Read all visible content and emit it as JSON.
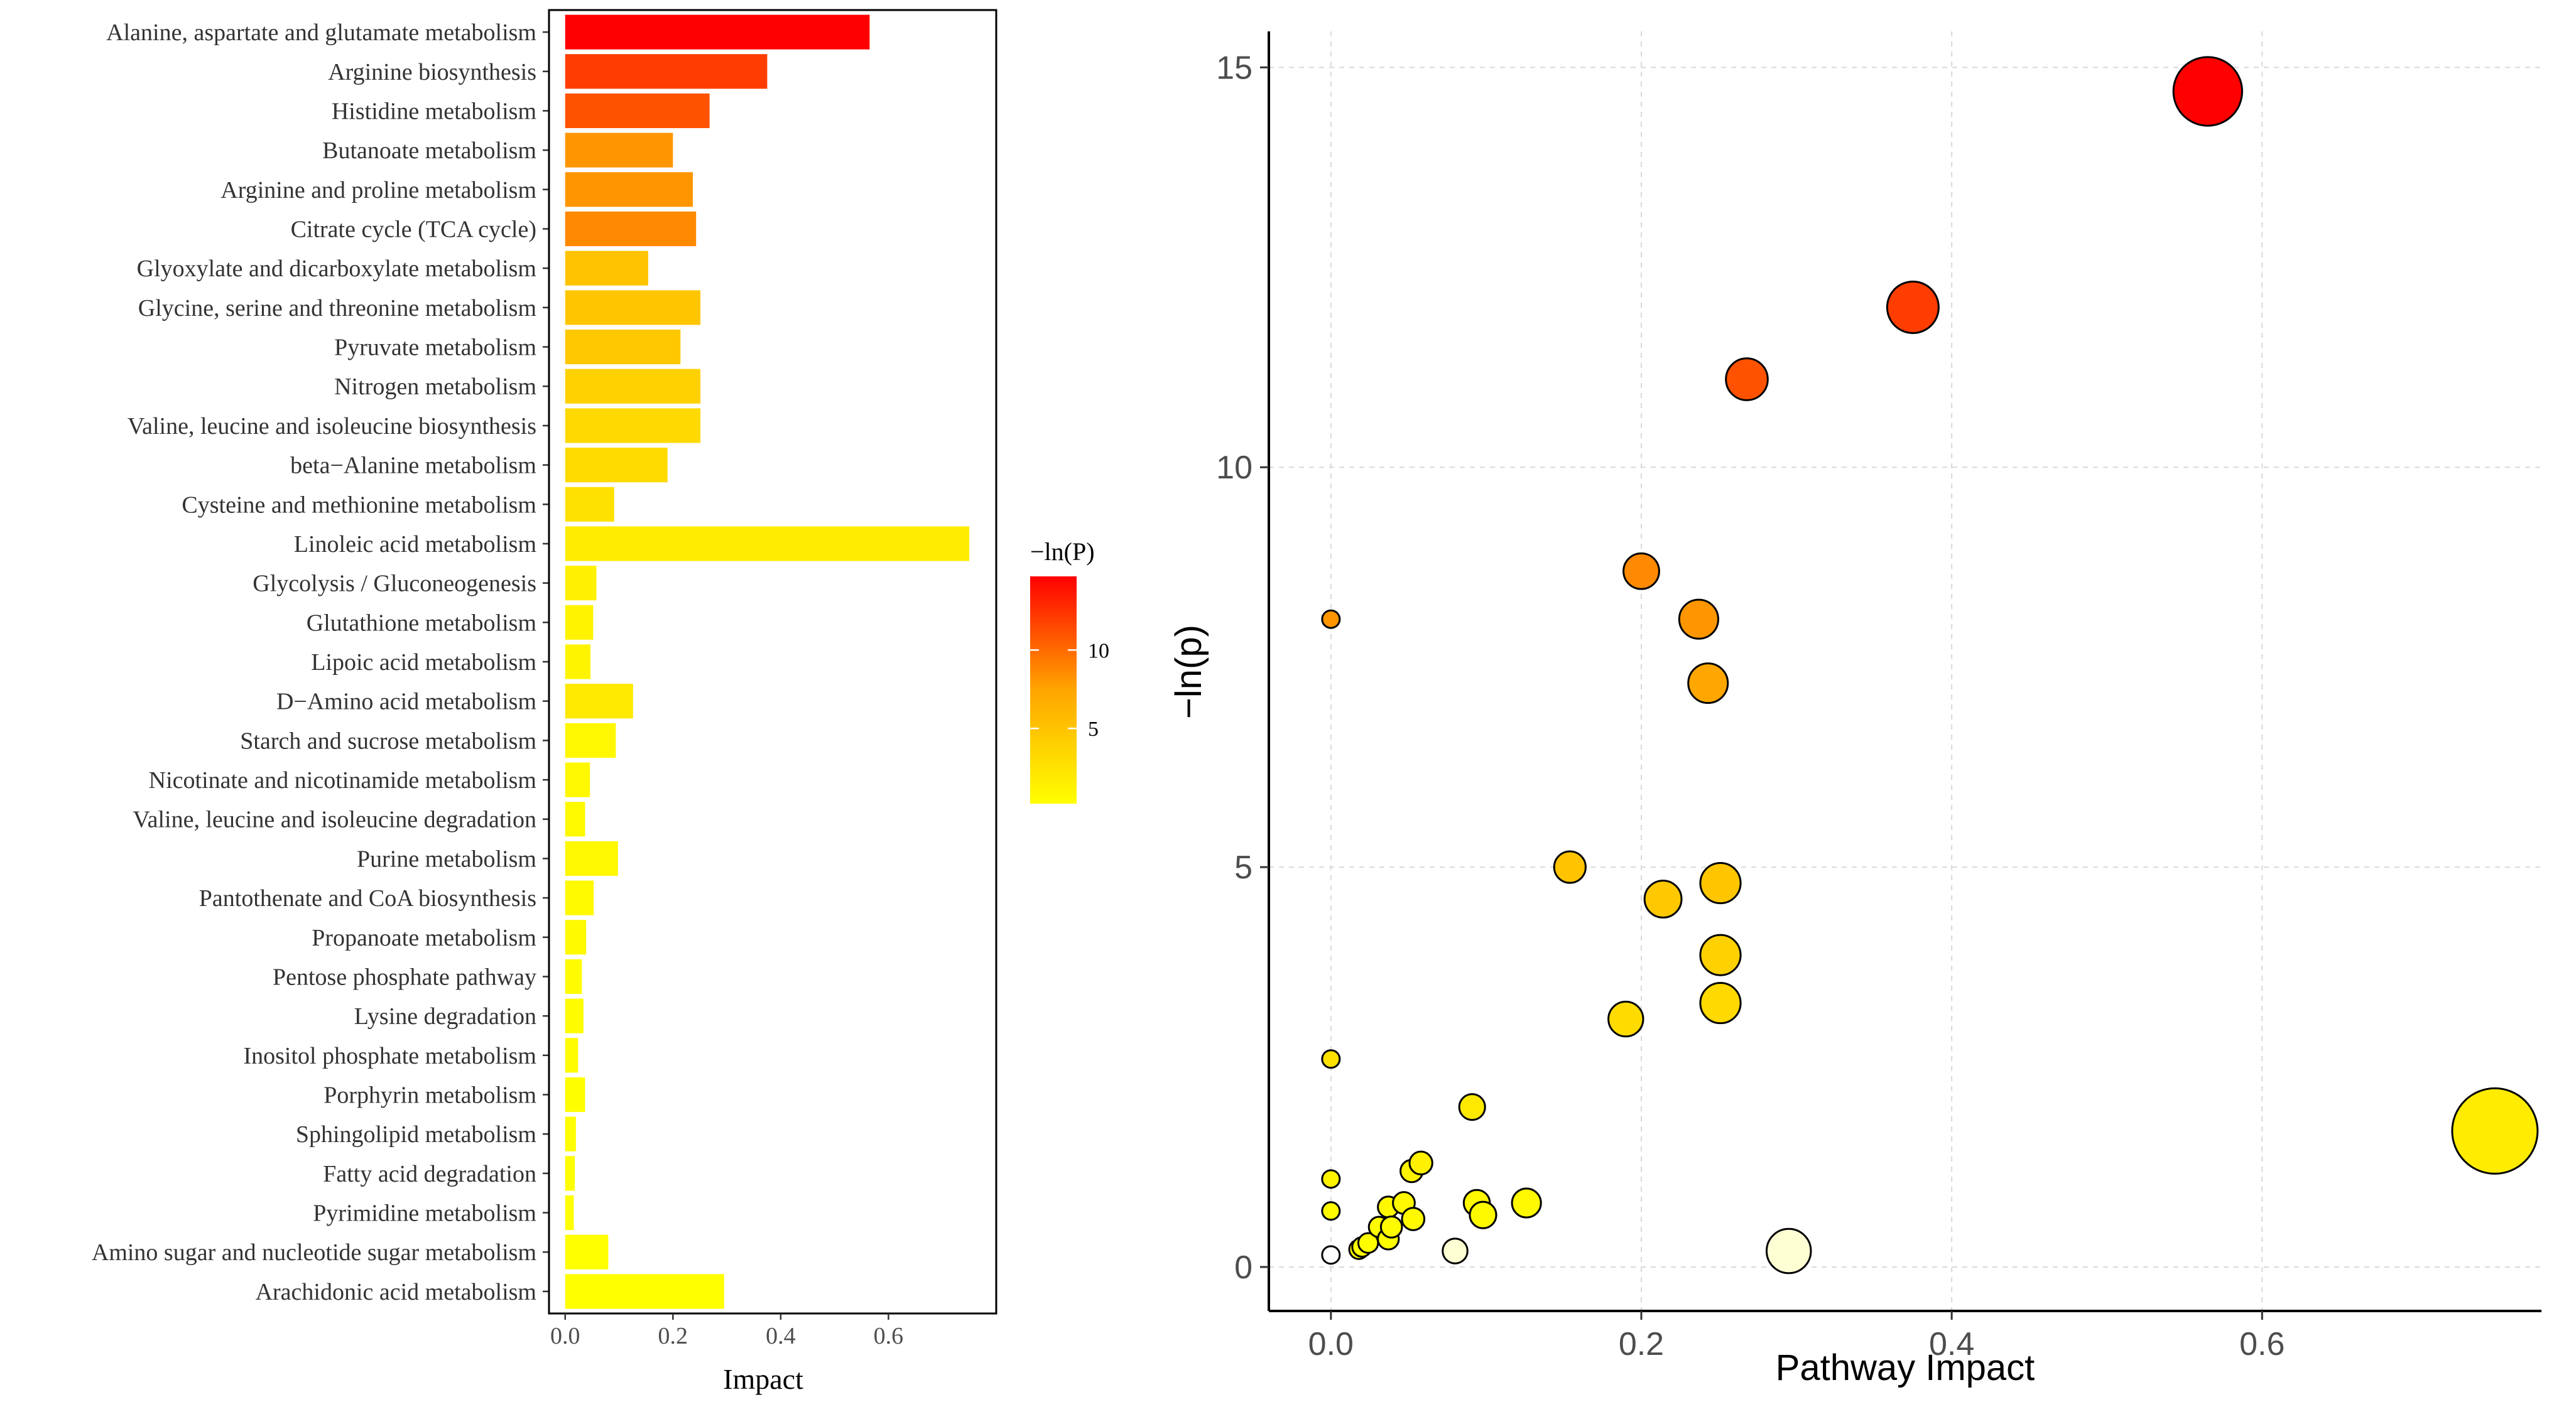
{
  "chart_data": [
    {
      "type": "bar",
      "orientation": "horizontal",
      "xlabel": "Impact",
      "xlim": [
        -0.03,
        0.8
      ],
      "x_ticks": [
        {
          "v": 0.0,
          "label": "0.0"
        },
        {
          "v": 0.2,
          "label": "0.2"
        },
        {
          "v": 0.4,
          "label": "0.4"
        },
        {
          "v": 0.6,
          "label": "0.6"
        }
      ],
      "categories": [
        "Alanine, aspartate and glutamate metabolism",
        "Arginine biosynthesis",
        "Histidine metabolism",
        "Butanoate metabolism",
        "Arginine and proline metabolism",
        "Citrate cycle (TCA cycle)",
        "Glyoxylate and dicarboxylate metabolism",
        "Glycine, serine and threonine metabolism",
        "Pyruvate metabolism",
        "Nitrogen metabolism",
        "Valine, leucine and isoleucine biosynthesis",
        "beta−Alanine metabolism",
        "Cysteine and methionine metabolism",
        "Linoleic acid metabolism",
        "Glycolysis / Gluconeogenesis",
        "Glutathione metabolism",
        "Lipoic acid metabolism",
        "D−Amino acid metabolism",
        "Starch and sucrose metabolism",
        "Nicotinate and nicotinamide metabolism",
        "Valine, leucine and isoleucine degradation",
        "Purine metabolism",
        "Pantothenate and CoA biosynthesis",
        "Propanoate metabolism",
        "Pentose phosphate pathway",
        "Lysine degradation",
        "Inositol phosphate metabolism",
        "Porphyrin metabolism",
        "Sphingolipid metabolism",
        "Fatty acid degradation",
        "Pyrimidine metabolism",
        "Amino sugar and nucleotide sugar metabolism",
        "Arachidonic acid metabolism"
      ],
      "values": [
        0.565,
        0.375,
        0.268,
        0.2,
        0.237,
        0.243,
        0.154,
        0.251,
        0.214,
        0.251,
        0.251,
        0.19,
        0.091,
        0.75,
        0.058,
        0.052,
        0.047,
        0.126,
        0.094,
        0.046,
        0.037,
        0.098,
        0.053,
        0.039,
        0.031,
        0.034,
        0.024,
        0.037,
        0.02,
        0.018,
        0.016,
        0.08,
        0.295
      ],
      "neg_ln_p": [
        14.7,
        12.0,
        11.1,
        8.1,
        8.1,
        8.7,
        5.0,
        4.8,
        4.6,
        3.9,
        3.3,
        3.1,
        2.6,
        1.7,
        1.3,
        1.2,
        1.1,
        2.0,
        0.8,
        0.8,
        0.7,
        0.8,
        0.6,
        0.6,
        0.5,
        0.4,
        0.4,
        0.3,
        0.3,
        0.3,
        0.2,
        0.2,
        0.2
      ],
      "legend": {
        "title": "−ln(P)",
        "position": "right",
        "range": [
          0.2,
          14.7
        ],
        "ticks": [
          {
            "v": 5,
            "label": "5"
          },
          {
            "v": 10,
            "label": "10"
          }
        ],
        "color_low": "#FFFF00",
        "color_high": "#FF0000"
      }
    },
    {
      "type": "scatter",
      "variant": "bubble",
      "xlabel": "Pathway Impact",
      "ylabel": "−ln(p)",
      "xlim": [
        -0.04,
        0.78
      ],
      "ylim": [
        -0.55,
        15.45
      ],
      "x_ticks": [
        {
          "v": 0.0,
          "label": "0.0"
        },
        {
          "v": 0.2,
          "label": "0.2"
        },
        {
          "v": 0.4,
          "label": "0.4"
        },
        {
          "v": 0.6,
          "label": "0.6"
        }
      ],
      "y_ticks": [
        {
          "v": 0,
          "label": "0"
        },
        {
          "v": 5,
          "label": "5"
        },
        {
          "v": 10,
          "label": "10"
        },
        {
          "v": 15,
          "label": "15"
        }
      ],
      "grid": true,
      "points": [
        {
          "x": 0.565,
          "y": 14.7
        },
        {
          "x": 0.375,
          "y": 12.0
        },
        {
          "x": 0.268,
          "y": 11.1
        },
        {
          "x": 0.2,
          "y": 8.7
        },
        {
          "x": 0.237,
          "y": 8.1
        },
        {
          "x": 0.243,
          "y": 7.3
        },
        {
          "x": 0.0,
          "y": 8.1
        },
        {
          "x": 0.154,
          "y": 5.0
        },
        {
          "x": 0.251,
          "y": 4.8
        },
        {
          "x": 0.214,
          "y": 4.6
        },
        {
          "x": 0.251,
          "y": 3.9
        },
        {
          "x": 0.251,
          "y": 3.3
        },
        {
          "x": 0.19,
          "y": 3.1
        },
        {
          "x": 0.0,
          "y": 2.6
        },
        {
          "x": 0.75,
          "y": 1.7
        },
        {
          "x": 0.091,
          "y": 2.0
        },
        {
          "x": 0.058,
          "y": 1.3
        },
        {
          "x": 0.052,
          "y": 1.2
        },
        {
          "x": 0.0,
          "y": 1.1
        },
        {
          "x": 0.047,
          "y": 0.8
        },
        {
          "x": 0.037,
          "y": 0.75
        },
        {
          "x": 0.094,
          "y": 0.8
        },
        {
          "x": 0.126,
          "y": 0.8
        },
        {
          "x": 0.0,
          "y": 0.7
        },
        {
          "x": 0.098,
          "y": 0.65
        },
        {
          "x": 0.053,
          "y": 0.6
        },
        {
          "x": 0.031,
          "y": 0.5
        },
        {
          "x": 0.039,
          "y": 0.5
        },
        {
          "x": 0.037,
          "y": 0.35
        },
        {
          "x": 0.024,
          "y": 0.3
        },
        {
          "x": 0.02,
          "y": 0.25
        },
        {
          "x": 0.018,
          "y": 0.22
        },
        {
          "x": 0.08,
          "y": 0.2
        },
        {
          "x": 0.295,
          "y": 0.2
        },
        {
          "x": 0.0,
          "y": 0.15
        }
      ]
    }
  ]
}
